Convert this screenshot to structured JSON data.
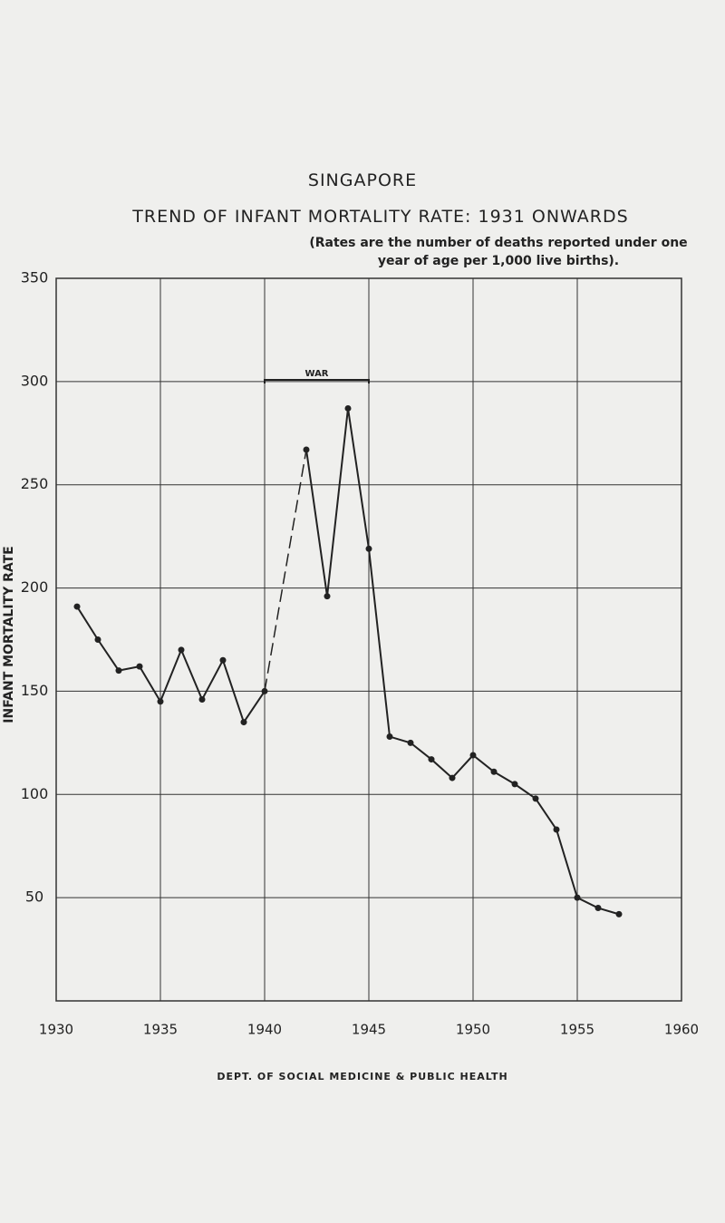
{
  "chart_data": {
    "type": "line",
    "title": "SINGAPORE",
    "subtitle": "TREND OF INFANT MORTALITY RATE: 1931 ONWARDS",
    "note": "(Rates are the number of deaths reported under one year of age per 1,000 live births).",
    "y_label": "INFANT MORTALITY RATE",
    "annotation": "WAR",
    "footer": "DEPT. OF SOCIAL MEDICINE & PUBLIC HEALTH",
    "x": [
      1931,
      1932,
      1933,
      1934,
      1935,
      1936,
      1937,
      1938,
      1939,
      1940,
      1941,
      1942,
      1943,
      1944,
      1945,
      1946,
      1947,
      1948,
      1949,
      1950,
      1951,
      1952,
      1953,
      1954,
      1955,
      1956,
      1957
    ],
    "series": [
      {
        "name": "Infant mortality rate",
        "color": "#222222",
        "values": [
          191,
          175,
          160,
          162,
          145,
          170,
          146,
          165,
          135,
          150,
          null,
          267,
          196,
          287,
          219,
          128,
          125,
          117,
          108,
          119,
          111,
          105,
          98,
          83,
          50,
          45,
          42
        ]
      }
    ],
    "gap_style": "dashed",
    "xlim": [
      1930,
      1960
    ],
    "xticks": [
      1930,
      1935,
      1940,
      1945,
      1950,
      1955,
      1960
    ],
    "ylim": [
      0,
      350
    ],
    "yticks": [
      50,
      100,
      150,
      200,
      250,
      300,
      350
    ],
    "grid": true
  }
}
